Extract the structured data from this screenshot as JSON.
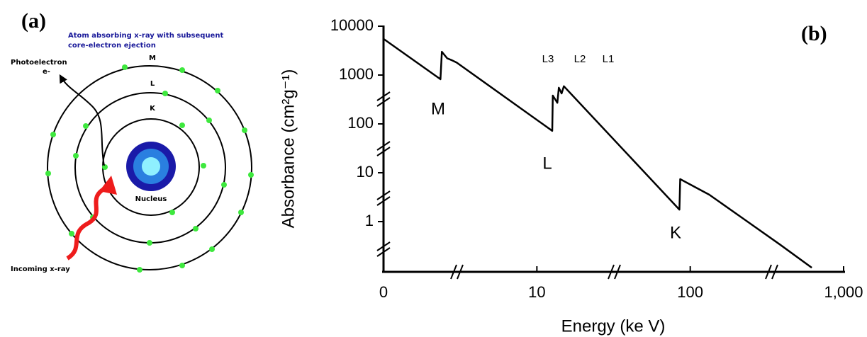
{
  "diagram": {
    "panel_label": "(a)",
    "caption_lines": [
      "Atom absorbing x-ray with subsequent",
      "core-electron ejection"
    ],
    "photoelectron": "Photoelectron",
    "electron": "e-",
    "shells": [
      "M",
      "L",
      "K"
    ],
    "nucleus": "Nucleus",
    "incoming": "Incoming x-ray"
  },
  "chart_data": {
    "type": "line",
    "panel_label": "(b)",
    "x_label": "Energy (ke V)",
    "y_label": "Absorbance (cm²g⁻¹)",
    "x": [
      1,
      2.35,
      2.4,
      2.6,
      2.8,
      3.0,
      12.6,
      12.7,
      13.6,
      13.9,
      14.5,
      15,
      85,
      86,
      133,
      226,
      384,
      620
    ],
    "values": [
      5500,
      820,
      3000,
      2200,
      2000,
      1800,
      72,
      380,
      270,
      550,
      420,
      590,
      1.76,
      7.4,
      3.55,
      1.1,
      0.34,
      0.114
    ],
    "color": "#000000",
    "xscale": "log",
    "yscale": "log",
    "xlim": [
      1,
      1000
    ],
    "ylim": [
      0.1,
      10000
    ],
    "xticks": [
      0,
      10,
      100,
      {
        "value": 1000,
        "label": "1,000"
      }
    ],
    "yticks": [
      1,
      10,
      100,
      1000,
      10000
    ],
    "annotations": [
      "M",
      "L",
      "K",
      "L3",
      "L2",
      "L1"
    ],
    "grid": false
  }
}
